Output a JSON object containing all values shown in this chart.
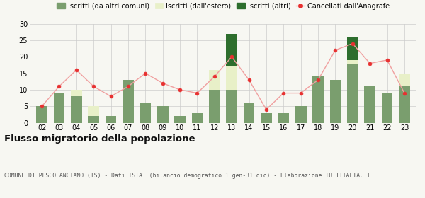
{
  "years": [
    "02",
    "03",
    "04",
    "05",
    "06",
    "07",
    "08",
    "09",
    "10",
    "11",
    "12",
    "13",
    "14",
    "15",
    "16",
    "17",
    "18",
    "19",
    "20",
    "21",
    "22",
    "23"
  ],
  "iscritti_da_altri": [
    5,
    9,
    8,
    2,
    2,
    13,
    6,
    5,
    2,
    3,
    10,
    10,
    6,
    3,
    3,
    5,
    14,
    13,
    18,
    11,
    9,
    11
  ],
  "iscritti_estero": [
    0,
    0,
    2,
    3,
    0,
    0,
    0,
    0,
    0,
    0,
    6,
    7,
    0,
    0,
    0,
    0,
    0,
    0,
    1,
    0,
    0,
    4
  ],
  "iscritti_altri": [
    0,
    0,
    0,
    0,
    0,
    0,
    0,
    0,
    0,
    0,
    0,
    10,
    0,
    0,
    0,
    0,
    0,
    0,
    7,
    0,
    0,
    0
  ],
  "cancellati": [
    5,
    11,
    16,
    11,
    8,
    11,
    15,
    12,
    10,
    9,
    14,
    20,
    13,
    4,
    9,
    9,
    13,
    22,
    24,
    18,
    19,
    9
  ],
  "color_da_altri": "#7a9e6e",
  "color_estero": "#e8f0c8",
  "color_altri": "#2d6e2d",
  "color_cancellati": "#e83030",
  "color_line": "#f0a0a0",
  "ylim": [
    0,
    30
  ],
  "yticks": [
    0,
    5,
    10,
    15,
    20,
    25,
    30
  ],
  "title": "Flusso migratorio della popolazione",
  "subtitle": "COMUNE DI PESCOLANCIANO (IS) - Dati ISTAT (bilancio demografico 1 gen-31 dic) - Elaborazione TUTTITALIA.IT",
  "legend_labels": [
    "Iscritti (da altri comuni)",
    "Iscritti (dall'estero)",
    "Iscritti (altri)",
    "Cancellati dall'Anagrafe"
  ],
  "bg_color": "#f7f7f2"
}
